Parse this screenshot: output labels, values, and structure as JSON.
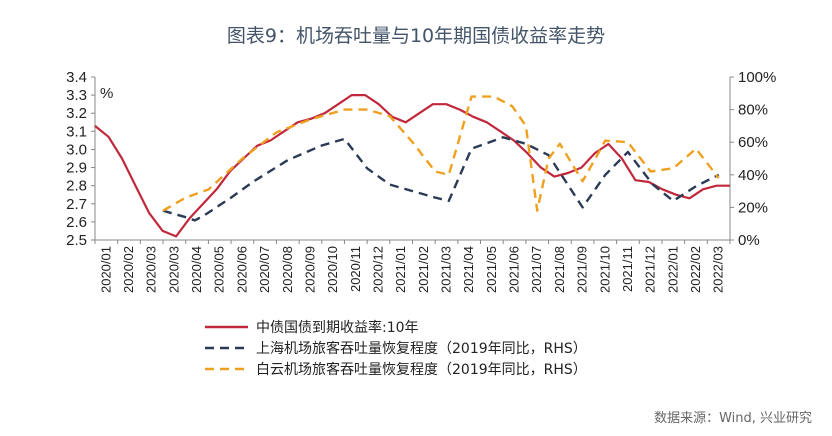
{
  "chart_data": {
    "type": "line",
    "title": "图表9：机场吞吐量与10年期国债收益率走势",
    "y_left": {
      "unit_label": "%",
      "ticks": [
        "3.4",
        "3.3",
        "3.2",
        "3.1",
        "3.0",
        "2.9",
        "2.8",
        "2.7",
        "2.6",
        "2.5"
      ],
      "range": [
        2.5,
        3.4
      ]
    },
    "y_right": {
      "ticks": [
        "100%",
        "80%",
        "60%",
        "40%",
        "20%",
        "0%"
      ],
      "range": [
        0,
        100
      ]
    },
    "x_ticks": [
      "2020/01",
      "2020/02",
      "2020/03",
      "2020/03",
      "2020/04",
      "2020/05",
      "2020/06",
      "2020/07",
      "2020/08",
      "2020/09",
      "2020/10",
      "2020/11",
      "2020/12",
      "2021/01",
      "2021/02",
      "2021/03",
      "2021/04",
      "2021/05",
      "2021/06",
      "2021/07",
      "2021/08",
      "2021/09",
      "2021/10",
      "2021/11",
      "2021/12",
      "2022/01",
      "2022/02",
      "2022/03"
    ],
    "series": [
      {
        "name": "中债国债到期收益率:10年",
        "axis": "left",
        "color": "#c0283c",
        "style": "solid",
        "values": [
          3.13,
          3.07,
          2.95,
          2.8,
          2.65,
          2.55,
          2.52,
          2.62,
          2.7,
          2.78,
          2.88,
          2.95,
          3.02,
          3.05,
          3.1,
          3.15,
          3.17,
          3.2,
          3.25,
          3.3,
          3.3,
          3.25,
          3.18,
          3.15,
          3.2,
          3.25,
          3.25,
          3.22,
          3.18,
          3.15,
          3.1,
          3.05,
          2.98,
          2.9,
          2.85,
          2.87,
          2.9,
          2.98,
          3.03,
          2.95,
          2.83,
          2.82,
          2.78,
          2.75,
          2.73,
          2.78,
          2.8,
          2.8
        ]
      },
      {
        "name": "上海机场旅客吞吐量恢复程度（2019年同比，RHS）",
        "axis": "right",
        "color": "#2b3a55",
        "style": "dashed",
        "x": [
          3.0,
          4.0,
          4.4,
          4.8,
          6.0,
          7.0,
          8.5,
          10.0,
          11.0,
          12.0,
          13.0,
          14.0,
          15.0,
          15.6,
          16.6,
          18.0,
          19.0,
          20.0,
          21.5,
          22.5,
          23.5,
          24.6,
          25.5,
          26.5,
          27.5
        ],
        "values": [
          18,
          14,
          12,
          15,
          26,
          36,
          49,
          58,
          62,
          44,
          34,
          30,
          26,
          24,
          56,
          63,
          59,
          52,
          20,
          40,
          54,
          34,
          24,
          33,
          40
        ]
      },
      {
        "name": "白云机场旅客吞吐量恢复程度（2019年同比，RHS）",
        "axis": "right",
        "color": "#f0a020",
        "style": "dashed",
        "x": [
          3.0,
          4.0,
          5.0,
          6.5,
          8.0,
          9.5,
          11.0,
          12.0,
          13.0,
          14.0,
          15.0,
          15.6,
          16.6,
          17.6,
          18.4,
          19.0,
          19.5,
          20.0,
          20.5,
          21.5,
          22.5,
          23.5,
          24.5,
          25.5,
          26.5,
          27.5
        ],
        "values": [
          18,
          26,
          31,
          50,
          66,
          74,
          80,
          80,
          76,
          60,
          42,
          40,
          88,
          88,
          82,
          70,
          18,
          50,
          59,
          36,
          61,
          60,
          42,
          44,
          56,
          38
        ]
      }
    ],
    "legend": [
      "中债国债到期收益率:10年",
      "上海机场旅客吞吐量恢复程度（2019年同比，RHS）",
      "白云机场旅客吞吐量恢复程度（2019年同比，RHS）"
    ],
    "source": "数据来源：Wind, 兴业研究",
    "grid": false,
    "legend_placement": "bottom"
  }
}
